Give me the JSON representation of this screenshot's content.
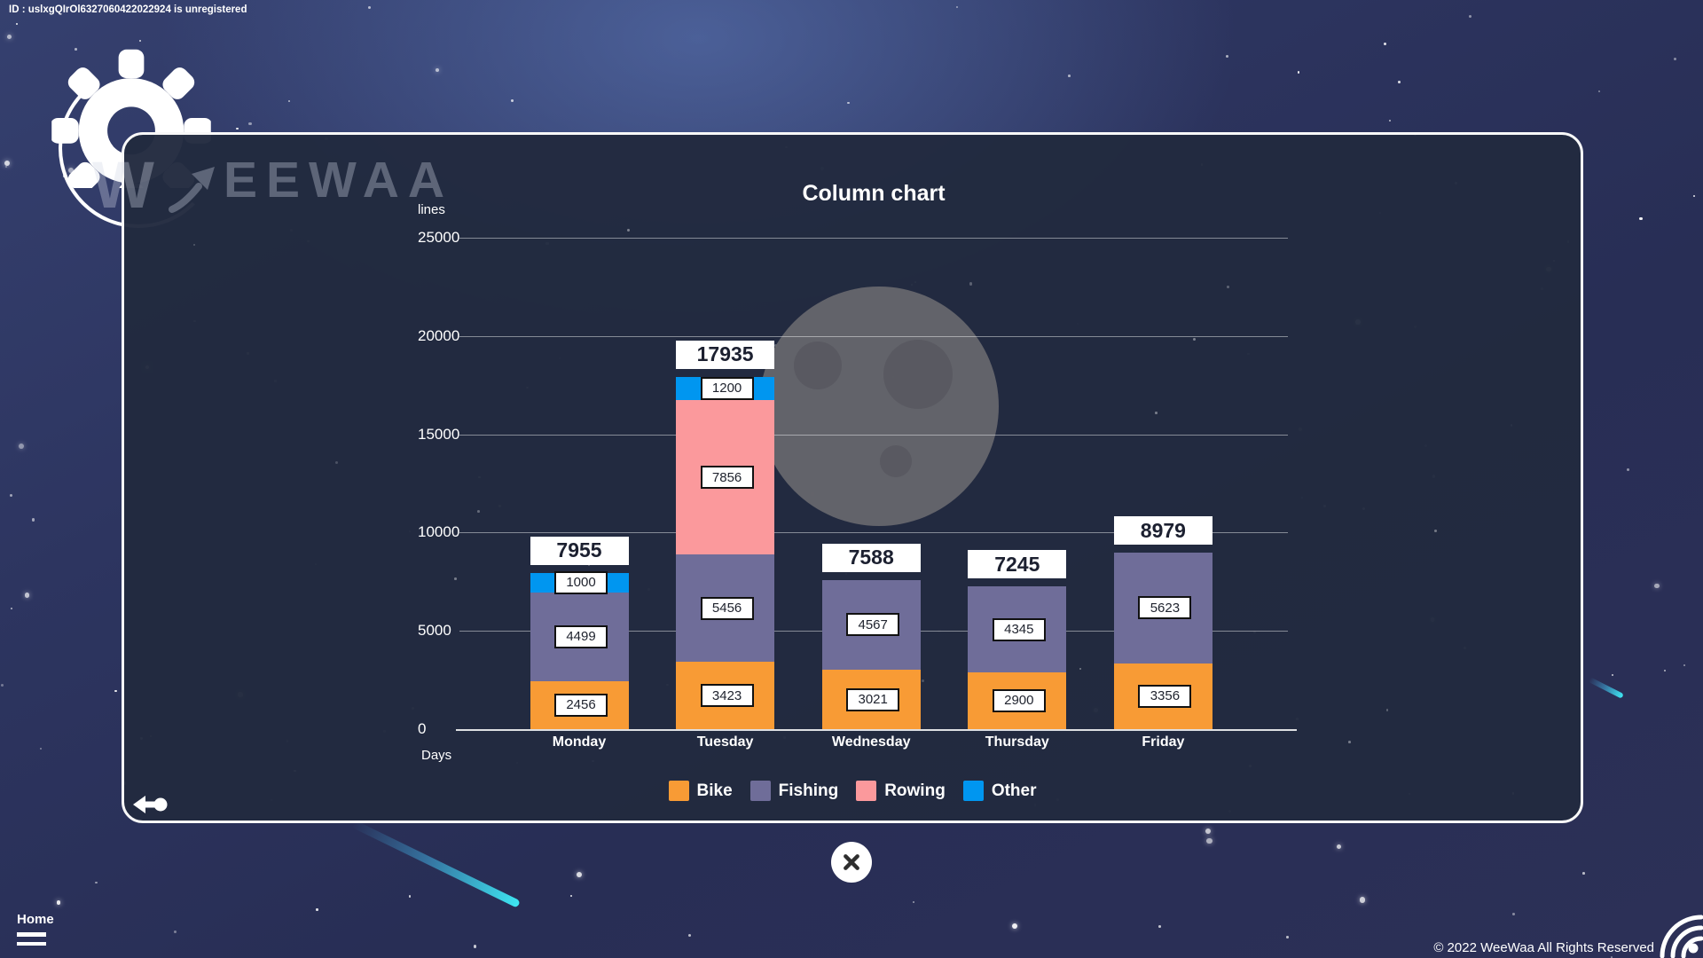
{
  "header": {
    "id_text": "ID : uslxgQIrOl6327060422022924 is unregistered"
  },
  "brand": {
    "watermark_w": "W",
    "watermark_text": "EEWAA"
  },
  "chart_data": {
    "type": "bar",
    "stacked": true,
    "title": "Column chart",
    "ylabel": "lines",
    "xlabel": "Days",
    "categories": [
      "Monday",
      "Tuesday",
      "Wednesday",
      "Thursday",
      "Friday"
    ],
    "series": [
      {
        "name": "Bike",
        "color": "#F89B35",
        "values": [
          2456,
          3423,
          3021,
          2900,
          3356
        ]
      },
      {
        "name": "Fishing",
        "color": "#6F6D99",
        "values": [
          4499,
          5456,
          4567,
          4345,
          5623
        ]
      },
      {
        "name": "Rowing",
        "color": "#FB999C",
        "values": [
          0,
          7856,
          0,
          0,
          0
        ]
      },
      {
        "name": "Other",
        "color": "#0096F0",
        "values": [
          1000,
          1200,
          0,
          0,
          0
        ]
      }
    ],
    "totals": [
      7955,
      17935,
      7588,
      7245,
      8979
    ],
    "yticks": [
      0,
      5000,
      10000,
      15000,
      20000,
      25000
    ],
    "ylim": [
      0,
      25000
    ],
    "grid": true,
    "legend_position": "bottom"
  },
  "footer": {
    "home_label": "Home",
    "copyright": "© 2022 WeeWaa All Rights Reserved"
  },
  "theme": {
    "panel_border": "#F8F8F8",
    "comet": "#3EE6F2",
    "moon": "#68686E",
    "label_box": "#FFFFFF",
    "label_text": "#20242F"
  }
}
